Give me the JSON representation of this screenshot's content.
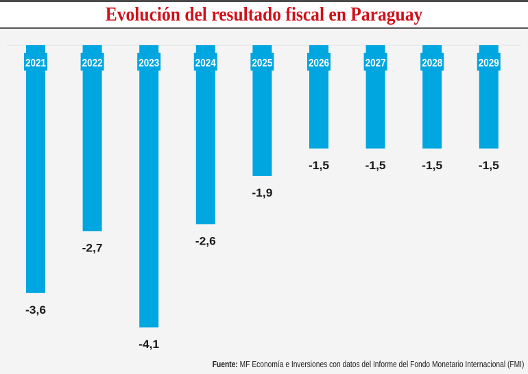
{
  "header": {
    "title": "Evolución del resultado fiscal en Paraguay"
  },
  "source": {
    "label": "Fuente:",
    "text": "MF Economía e Inversiones con datos del Informe del Fondo Monetario Internacional (FMI)"
  },
  "colors": {
    "bar": "#00a6e0",
    "title": "#d0101a",
    "label": "#1a1a1a"
  },
  "chart_data": {
    "type": "bar",
    "title": "Evolución del resultado fiscal en Paraguay",
    "categories": [
      "2021",
      "2022",
      "2023",
      "2024",
      "2025",
      "2026",
      "2027",
      "2028",
      "2029"
    ],
    "values": [
      -3.6,
      -2.7,
      -4.1,
      -2.6,
      -1.9,
      -1.5,
      -1.5,
      -1.5,
      -1.5
    ],
    "labels": [
      "-3,6",
      "-2,7",
      "-4,1",
      "-2,6",
      "-1,9",
      "-1,5",
      "-1,5",
      "-1,5",
      "-1,5"
    ],
    "xlabel": "",
    "ylabel": "",
    "ylim": [
      -4.1,
      0
    ],
    "grid": false,
    "category_labels_position": "top",
    "data_labels_position": "below-bar"
  }
}
